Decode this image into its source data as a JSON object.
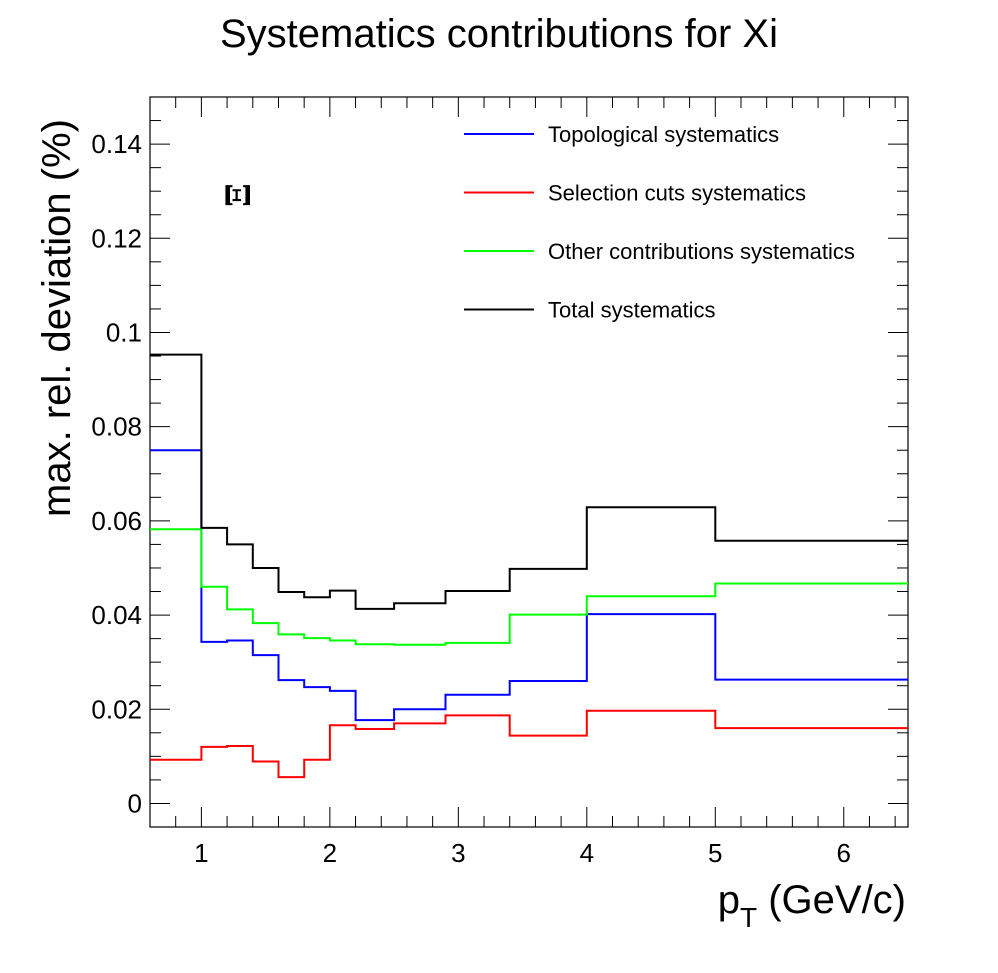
{
  "chart_data": {
    "type": "line",
    "title": "Systematics contributions for Xi",
    "xlabel_main": "p",
    "xlabel_sub": "T",
    "xlabel_rest": " (GeV/c)",
    "ylabel": "max. rel. deviation (%)",
    "annotation": "Ξ",
    "xlim": [
      0.6,
      6.5
    ],
    "ylim": [
      -0.005,
      0.15
    ],
    "xticks": [
      1,
      2,
      3,
      4,
      5,
      6
    ],
    "xtick_labels": [
      "1",
      "2",
      "3",
      "4",
      "5",
      "6"
    ],
    "yticks": [
      0,
      0.02,
      0.04,
      0.06,
      0.08,
      0.1,
      0.12,
      0.14
    ],
    "ytick_labels": [
      "0",
      "0.02",
      "0.04",
      "0.06",
      "0.08",
      "0.1",
      "0.12",
      "0.14"
    ],
    "bin_edges": [
      0.6,
      1.0,
      1.2,
      1.4,
      1.6,
      1.8,
      2.0,
      2.2,
      2.5,
      2.9,
      3.4,
      4.0,
      5.0,
      6.5
    ],
    "series": [
      {
        "name": "Topological systematics",
        "color": "#0000ff",
        "values": [
          0.075,
          0.0343,
          0.0346,
          0.0315,
          0.0262,
          0.0247,
          0.0239,
          0.0177,
          0.02,
          0.0231,
          0.026,
          0.0402,
          0.0263
        ]
      },
      {
        "name": "Selection cuts systematics",
        "color": "#ff0000",
        "values": [
          0.0093,
          0.012,
          0.0122,
          0.0089,
          0.0056,
          0.0093,
          0.0166,
          0.0158,
          0.017,
          0.0187,
          0.0144,
          0.0197,
          0.016
        ]
      },
      {
        "name": "Other contributions systematics",
        "color": "#00ff00",
        "values": [
          0.0582,
          0.046,
          0.0412,
          0.0383,
          0.0359,
          0.0351,
          0.0346,
          0.0338,
          0.0337,
          0.0341,
          0.0401,
          0.044,
          0.0467
        ]
      },
      {
        "name": "Total systematics",
        "color": "#000000",
        "values": [
          0.0953,
          0.0585,
          0.055,
          0.05,
          0.0449,
          0.0438,
          0.0452,
          0.0413,
          0.0425,
          0.0451,
          0.0498,
          0.0629,
          0.0558
        ]
      }
    ],
    "legend_position": "top-right",
    "grid": false
  }
}
